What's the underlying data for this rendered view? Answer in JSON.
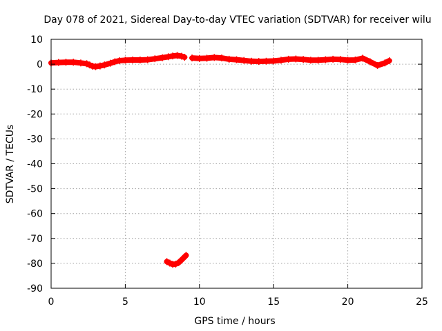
{
  "chart_data": {
    "type": "scatter",
    "title": "Day 078 of 2021, Sidereal Day-to-day VTEC variation (SDTVAR) for receiver wilu",
    "xlabel": "GPS time / hours",
    "ylabel": "SDTVAR / TECUs",
    "xlim": [
      0,
      25
    ],
    "ylim": [
      -90,
      10
    ],
    "xticks": [
      0,
      5,
      10,
      15,
      20,
      25
    ],
    "yticks": [
      10,
      0,
      -10,
      -20,
      -30,
      -40,
      -50,
      -60,
      -70,
      -80,
      -90
    ],
    "grid": true,
    "series": [
      {
        "name": "SDTVAR",
        "color": "#ff0000",
        "marker": "plus",
        "segments": [
          {
            "x": [
              0.0,
              0.5,
              1.0,
              1.5,
              2.0,
              2.4,
              2.6,
              2.8,
              3.0,
              3.3,
              3.6,
              4.0,
              4.3,
              4.6,
              5.0,
              5.5,
              6.0,
              6.5,
              7.0,
              7.5,
              7.9,
              8.2,
              8.5,
              8.8,
              9.0
            ],
            "y": [
              0.5,
              0.7,
              0.8,
              0.8,
              0.5,
              0.2,
              -0.3,
              -0.8,
              -1.0,
              -0.7,
              -0.3,
              0.4,
              1.0,
              1.4,
              1.6,
              1.7,
              1.7,
              1.8,
              2.2,
              2.6,
              3.0,
              3.3,
              3.5,
              3.2,
              2.8
            ]
          },
          {
            "x": [
              9.5,
              10.0,
              10.5,
              11.0,
              11.5,
              12.0,
              12.5,
              13.0,
              13.5,
              14.0,
              14.5,
              15.0,
              15.5,
              16.0,
              16.5,
              17.0,
              17.5,
              18.0,
              18.5,
              19.0,
              19.5,
              20.0,
              20.5,
              21.0,
              21.5,
              22.0,
              22.5,
              22.8
            ],
            "y": [
              2.5,
              2.3,
              2.4,
              2.7,
              2.5,
              2.0,
              1.8,
              1.5,
              1.2,
              1.1,
              1.2,
              1.3,
              1.6,
              2.0,
              2.1,
              1.9,
              1.6,
              1.6,
              1.8,
              2.0,
              1.9,
              1.6,
              1.7,
              2.4,
              1.0,
              -0.5,
              0.5,
              1.4
            ]
          },
          {
            "x": [
              7.8,
              8.0,
              8.2,
              8.4,
              8.6,
              8.8,
              9.0,
              9.1
            ],
            "y": [
              -79.3,
              -79.9,
              -80.4,
              -80.3,
              -79.7,
              -78.6,
              -77.4,
              -76.8
            ]
          }
        ]
      }
    ]
  }
}
